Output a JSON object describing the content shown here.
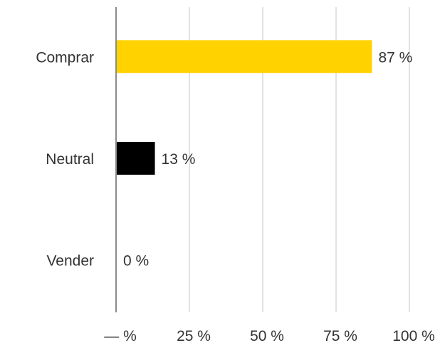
{
  "chart_data": {
    "type": "bar",
    "orientation": "horizontal",
    "categories": [
      "Comprar",
      "Neutral",
      "Vender"
    ],
    "values": [
      87,
      13,
      0
    ],
    "value_labels": [
      "87 %",
      "13 %",
      "0 %"
    ],
    "bar_colors": [
      "#FFD200",
      "#000000",
      "#000000"
    ],
    "xlim": [
      0,
      100
    ],
    "xticks": [
      0,
      25,
      50,
      75,
      100
    ],
    "xtick_labels": [
      "— %",
      "25 %",
      "50 %",
      "75 %",
      "100 %"
    ],
    "grid": true,
    "title": "",
    "xlabel": "",
    "ylabel": ""
  }
}
